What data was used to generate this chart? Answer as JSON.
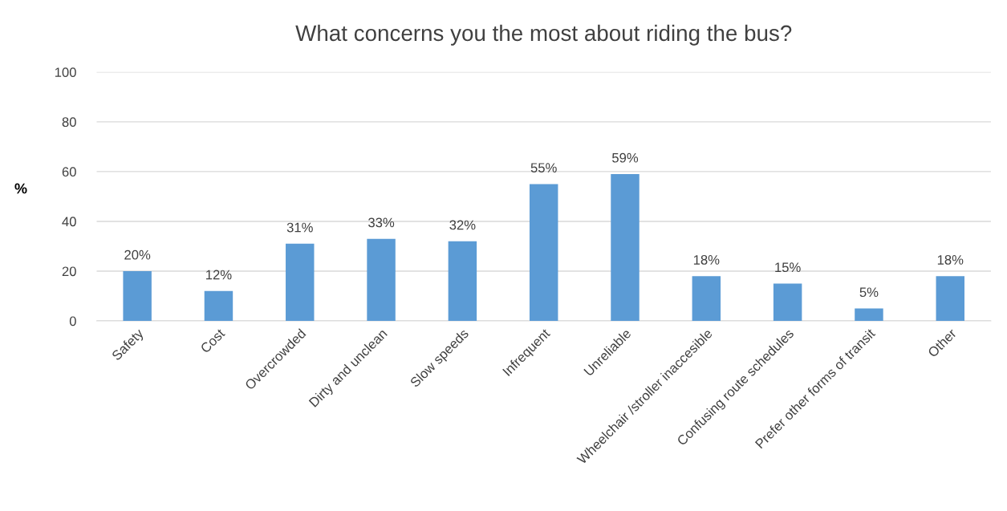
{
  "chart_data": {
    "type": "bar",
    "title": "What concerns you the most about riding the bus?",
    "ylabel": "%",
    "categories": [
      "Safety",
      "Cost",
      "Overcrowded",
      "Dirty and unclean",
      "Slow speeds",
      "Infrequent",
      "Unreliable",
      "Wheelchair /stroller inaccesible",
      "Confusing route schedules",
      "Prefer other forms of transit",
      "Other"
    ],
    "values": [
      20,
      12,
      31,
      33,
      32,
      55,
      59,
      18,
      15,
      5,
      18
    ],
    "value_labels": [
      "20%",
      "12%",
      "31%",
      "33%",
      "32%",
      "55%",
      "59%",
      "18%",
      "15%",
      "5%",
      "18%"
    ],
    "color": "#5b9bd5",
    "ylim": [
      0,
      100
    ],
    "yticks": [
      0,
      20,
      40,
      60,
      80,
      100
    ],
    "grid": "y",
    "legend": false
  }
}
